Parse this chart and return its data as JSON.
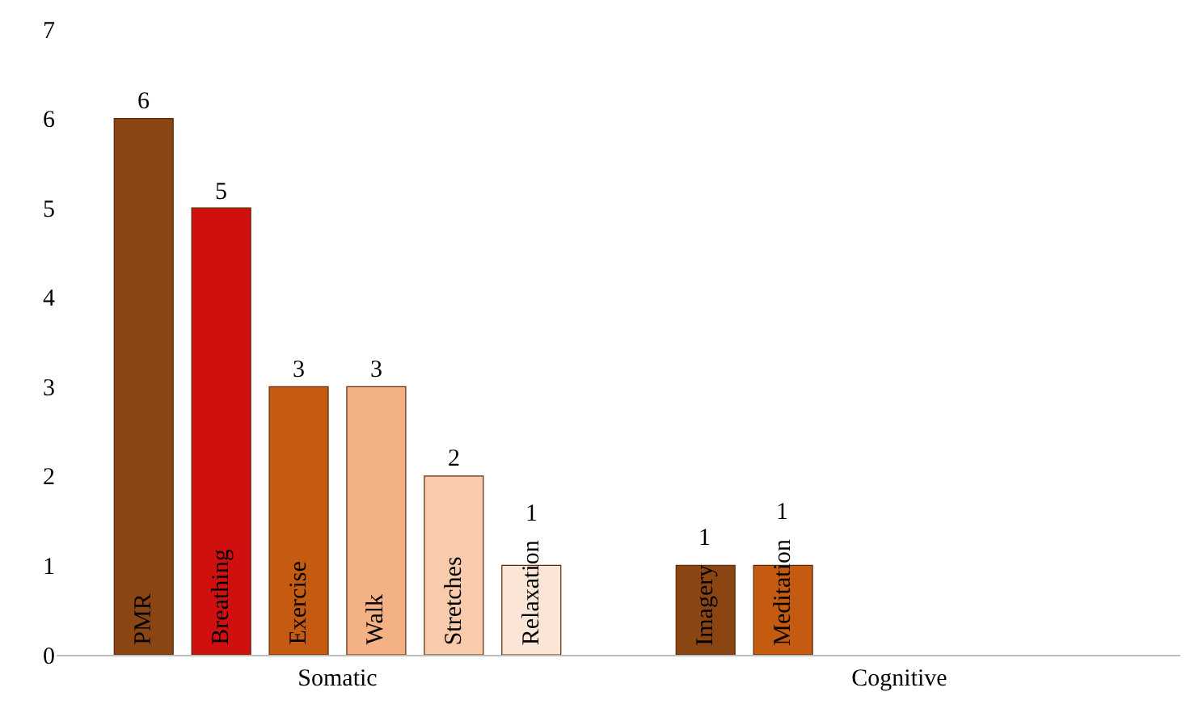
{
  "chart_data": {
    "type": "bar",
    "categories": [
      "Somatic",
      "Cognitive"
    ],
    "series": [
      {
        "name": "PMR",
        "color": "#8b4513",
        "values": [
          6,
          null
        ]
      },
      {
        "name": "Breathing",
        "color": "#d00f0f",
        "values": [
          5,
          null
        ]
      },
      {
        "name": "Exercise",
        "color": "#c55a11",
        "values": [
          3,
          null
        ]
      },
      {
        "name": "Walk",
        "color": "#f4b183",
        "values": [
          3,
          null
        ]
      },
      {
        "name": "Stretches",
        "color": "#f8cbad",
        "values": [
          2,
          null
        ]
      },
      {
        "name": "Relaxation",
        "color": "#fbe5d6",
        "values": [
          1,
          null
        ]
      },
      {
        "name": "Imagery",
        "color": "#8b4513",
        "values": [
          null,
          1
        ]
      },
      {
        "name": "Meditation",
        "color": "#c55a11",
        "values": [
          null,
          1
        ]
      }
    ],
    "ylim": [
      0,
      7
    ],
    "yticks": [
      0,
      1,
      2,
      3,
      4,
      5,
      6,
      7
    ],
    "grid": false,
    "legend": false,
    "data_labels": true
  }
}
